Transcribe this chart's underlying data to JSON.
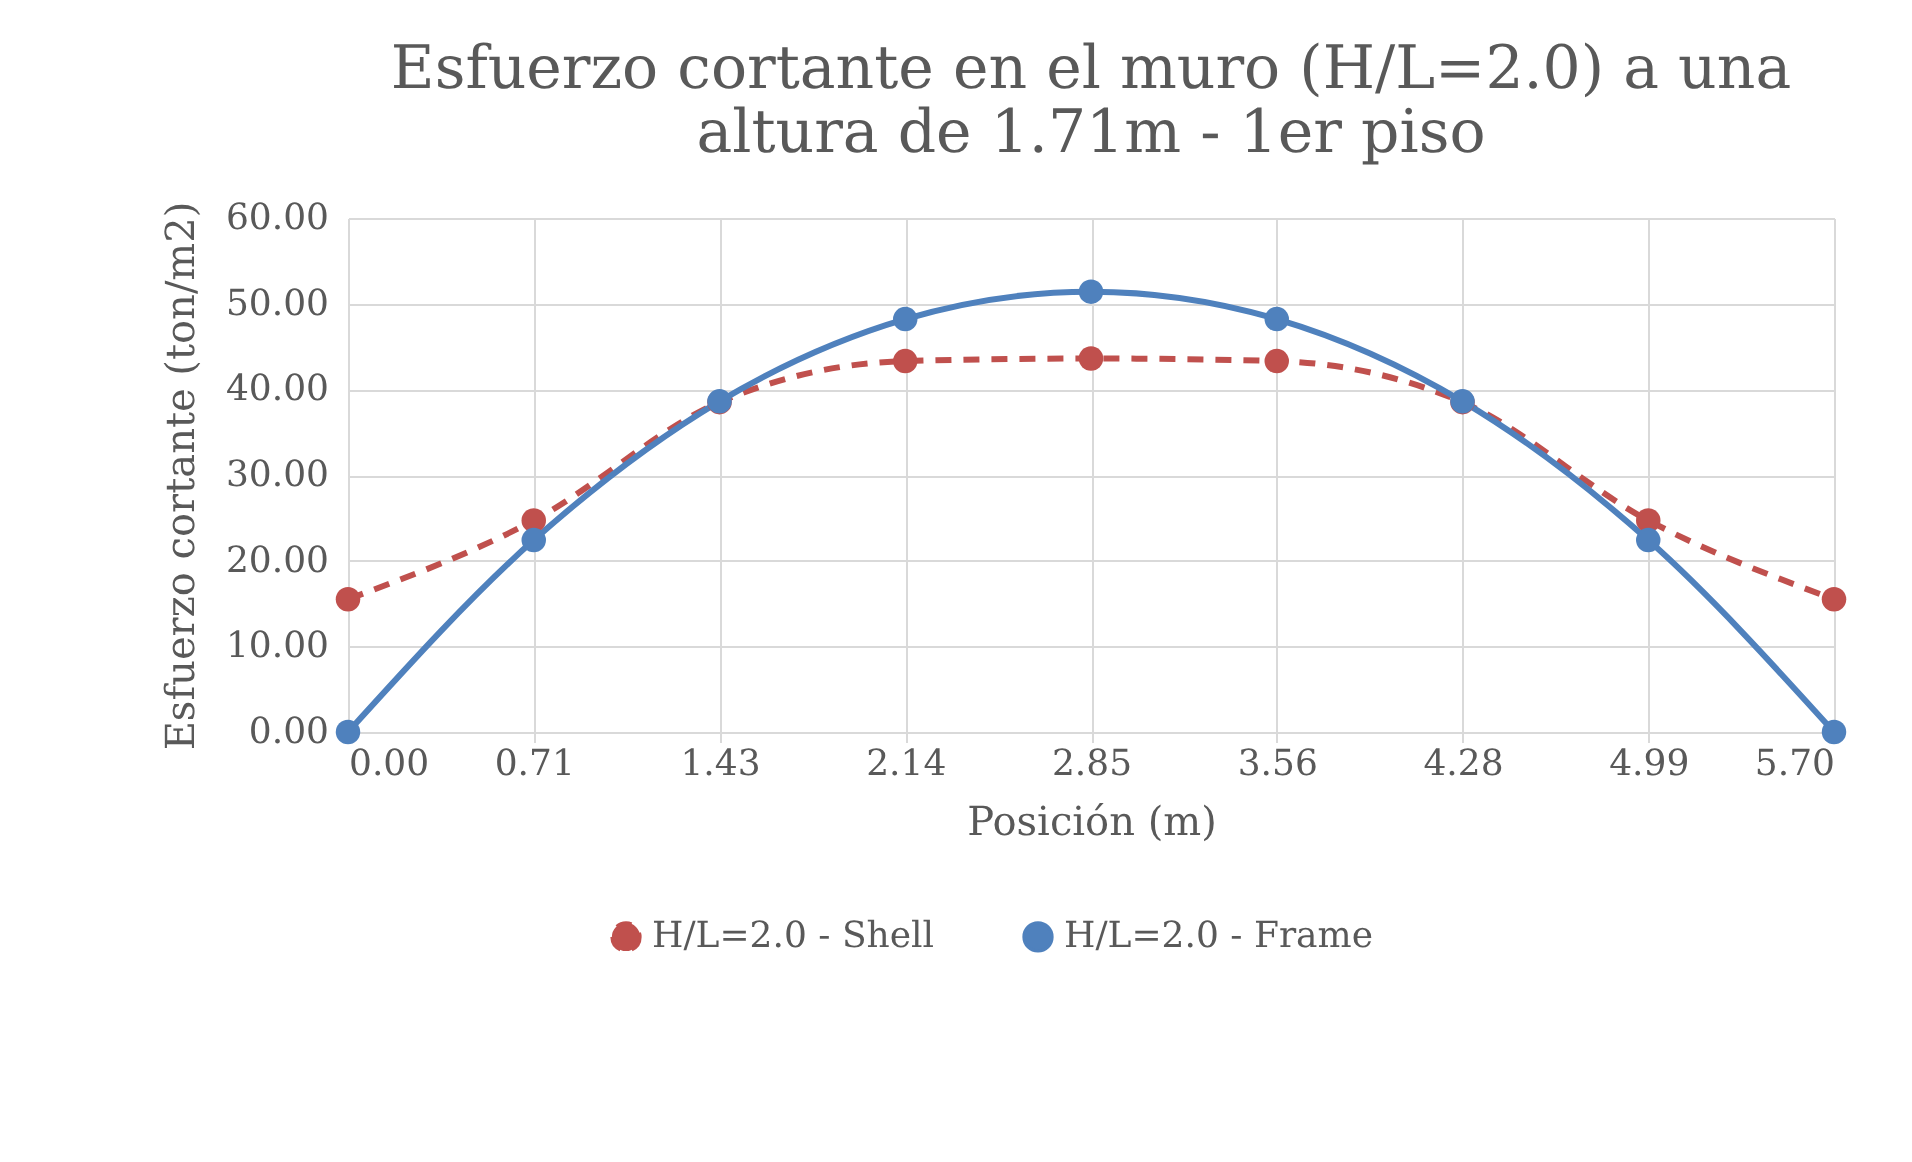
{
  "chart_data": {
    "type": "line",
    "title": "Esfuerzo cortante en el muro (H/L=2.0) a una altura de 1.71m - 1er piso",
    "xlabel": "Posición (m)",
    "ylabel": "Esfuerzo cortante (ton/m2)",
    "categories": [
      "0.00",
      "0.71",
      "1.43",
      "2.14",
      "2.85",
      "3.56",
      "4.28",
      "4.99",
      "5.70"
    ],
    "series": [
      {
        "name": "H/L=2.0 - Shell",
        "color": "#c0504d",
        "line_style": "dashed",
        "values": [
          15.5,
          24.7,
          38.5,
          43.3,
          43.6,
          43.3,
          38.5,
          24.7,
          15.5
        ]
      },
      {
        "name": "H/L=2.0 - Frame",
        "color": "#4f81bd",
        "line_style": "solid",
        "values": [
          0,
          22.4,
          38.6,
          48.2,
          51.4,
          48.2,
          38.6,
          22.4,
          0
        ]
      }
    ],
    "ylim": [
      0,
      60
    ],
    "yticks": [
      {
        "value": 0,
        "label": "0.00"
      },
      {
        "value": 10,
        "label": "10.00"
      },
      {
        "value": 20,
        "label": "20.00"
      },
      {
        "value": 30,
        "label": "30.00"
      },
      {
        "value": 40,
        "label": "40.00"
      },
      {
        "value": 50,
        "label": "50.00"
      },
      {
        "value": 60,
        "label": "60.00"
      }
    ],
    "grid": true,
    "legend": "bottom",
    "marker": "circle"
  }
}
